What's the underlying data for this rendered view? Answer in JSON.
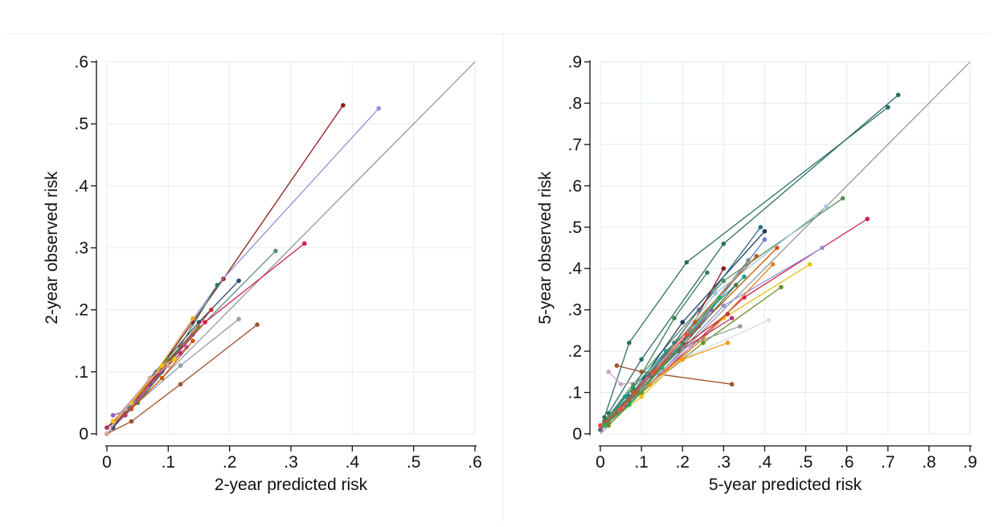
{
  "chart_data": [
    {
      "type": "line",
      "xlabel": "2-year predicted risk",
      "ylabel": "2-year observed risk",
      "xlim": [
        0,
        0.6
      ],
      "ylim": [
        0,
        0.6
      ],
      "xticks": [
        "0",
        ".1",
        ".2",
        ".3",
        ".4",
        ".5",
        ".6"
      ],
      "yticks": [
        "0",
        ".1",
        ".2",
        ".3",
        ".4",
        ".5",
        ".6"
      ],
      "grid": true,
      "reference_line": [
        [
          0,
          0
        ],
        [
          0.6,
          0.6
        ]
      ],
      "series": [
        {
          "color": "#8b1a1a",
          "points": [
            [
              0.01,
              0.01
            ],
            [
              0.06,
              0.07
            ],
            [
              0.14,
              0.18
            ],
            [
              0.19,
              0.25
            ],
            [
              0.385,
              0.53
            ]
          ]
        },
        {
          "color": "#8f8fd9",
          "points": [
            [
              0.01,
              0.02
            ],
            [
              0.08,
              0.1
            ],
            [
              0.18,
              0.24
            ],
            [
              0.443,
              0.525
            ]
          ]
        },
        {
          "color": "#5b8c8c",
          "points": [
            [
              0.0,
              0.0
            ],
            [
              0.06,
              0.07
            ],
            [
              0.14,
              0.16
            ],
            [
              0.275,
              0.295
            ]
          ]
        },
        {
          "color": "#d0204c",
          "points": [
            [
              0.0,
              0.01
            ],
            [
              0.07,
              0.08
            ],
            [
              0.16,
              0.18
            ],
            [
              0.322,
              0.307
            ]
          ]
        },
        {
          "color": "#2c4a6e",
          "points": [
            [
              0.01,
              0.01
            ],
            [
              0.07,
              0.09
            ],
            [
              0.15,
              0.18
            ],
            [
              0.215,
              0.247
            ]
          ]
        },
        {
          "color": "#6b8e23",
          "points": [
            [
              0.01,
              0.02
            ],
            [
              0.05,
              0.06
            ],
            [
              0.1,
              0.12
            ],
            [
              0.15,
              0.172
            ]
          ]
        },
        {
          "color": "#8fa0a0",
          "points": [
            [
              0.0,
              0.01
            ],
            [
              0.05,
              0.05
            ],
            [
              0.12,
              0.11
            ],
            [
              0.215,
              0.185
            ]
          ]
        },
        {
          "color": "#a0522d",
          "points": [
            [
              0.0,
              0.0
            ],
            [
              0.04,
              0.02
            ],
            [
              0.12,
              0.08
            ],
            [
              0.245,
              0.176
            ]
          ]
        },
        {
          "color": "#e8a33d",
          "points": [
            [
              0.01,
              0.02
            ],
            [
              0.06,
              0.07
            ],
            [
              0.14,
              0.186
            ]
          ]
        },
        {
          "color": "#9b59b6",
          "points": [
            [
              0.01,
              0.03
            ],
            [
              0.04,
              0.04
            ],
            [
              0.09,
              0.1
            ],
            [
              0.13,
              0.14
            ]
          ]
        },
        {
          "color": "#c0392b",
          "points": [
            [
              0.0,
              0.01
            ],
            [
              0.05,
              0.06
            ],
            [
              0.12,
              0.14
            ],
            [
              0.17,
              0.2
            ]
          ]
        },
        {
          "color": "#3a7d5d",
          "points": [
            [
              0.0,
              0.01
            ],
            [
              0.05,
              0.05
            ],
            [
              0.1,
              0.11
            ],
            [
              0.18,
              0.24
            ]
          ]
        },
        {
          "color": "#d35400",
          "points": [
            [
              0.01,
              0.02
            ],
            [
              0.04,
              0.04
            ],
            [
              0.09,
              0.09
            ],
            [
              0.14,
              0.15
            ]
          ]
        },
        {
          "color": "#b03a6f",
          "points": [
            [
              0.0,
              0.01
            ],
            [
              0.03,
              0.03
            ],
            [
              0.07,
              0.08
            ],
            [
              0.12,
              0.13
            ]
          ]
        },
        {
          "color": "#f1c40f",
          "points": [
            [
              0.01,
              0.02
            ],
            [
              0.04,
              0.05
            ],
            [
              0.09,
              0.11
            ],
            [
              0.11,
              0.12
            ]
          ]
        },
        {
          "color": "#d9a6a6",
          "points": [
            [
              0.0,
              0.0
            ],
            [
              0.03,
              0.04
            ],
            [
              0.07,
              0.09
            ],
            [
              0.1,
              0.11
            ]
          ]
        }
      ]
    },
    {
      "type": "line",
      "xlabel": "5-year predicted risk",
      "ylabel": "5-year observed risk",
      "xlim": [
        0,
        0.9
      ],
      "ylim": [
        0,
        0.9
      ],
      "xticks": [
        "0",
        ".1",
        ".2",
        ".3",
        ".4",
        ".5",
        ".6",
        ".7",
        ".8",
        ".9"
      ],
      "yticks": [
        "0",
        ".1",
        ".2",
        ".3",
        ".4",
        ".5",
        ".6",
        ".7",
        ".8",
        ".9"
      ],
      "grid": true,
      "reference_line": [
        [
          0,
          0
        ],
        [
          0.9,
          0.9
        ]
      ],
      "series": [
        {
          "color": "#2a6e64",
          "points": [
            [
              0.01,
              0.04
            ],
            [
              0.07,
              0.22
            ],
            [
              0.21,
              0.415
            ],
            [
              0.7,
              0.79
            ]
          ]
        },
        {
          "color": "#2a6e64",
          "points": [
            [
              0.02,
              0.05
            ],
            [
              0.1,
              0.18
            ],
            [
              0.3,
              0.46
            ],
            [
              0.725,
              0.82
            ]
          ]
        },
        {
          "color": "#5b8c5b",
          "points": [
            [
              0.01,
              0.03
            ],
            [
              0.08,
              0.12
            ],
            [
              0.3,
              0.37
            ],
            [
              0.59,
              0.57
            ]
          ]
        },
        {
          "color": "#d0204c",
          "points": [
            [
              0.0,
              0.01
            ],
            [
              0.1,
              0.1
            ],
            [
              0.35,
              0.33
            ],
            [
              0.65,
              0.52
            ]
          ]
        },
        {
          "color": "#e8c21a",
          "points": [
            [
              0.01,
              0.02
            ],
            [
              0.1,
              0.09
            ],
            [
              0.3,
              0.28
            ],
            [
              0.51,
              0.41
            ]
          ]
        },
        {
          "color": "#8f8fd9",
          "points": [
            [
              0.0,
              0.01
            ],
            [
              0.12,
              0.12
            ],
            [
              0.3,
              0.31
            ],
            [
              0.54,
              0.45
            ]
          ]
        },
        {
          "color": "#1f3a5f",
          "points": [
            [
              0.01,
              0.02
            ],
            [
              0.08,
              0.1
            ],
            [
              0.2,
              0.27
            ],
            [
              0.4,
              0.49
            ]
          ]
        },
        {
          "color": "#2c6e8f",
          "points": [
            [
              0.0,
              0.02
            ],
            [
              0.07,
              0.09
            ],
            [
              0.18,
              0.22
            ],
            [
              0.39,
              0.5
            ]
          ]
        },
        {
          "color": "#6b8e23",
          "points": [
            [
              0.02,
              0.02
            ],
            [
              0.1,
              0.1
            ],
            [
              0.25,
              0.22
            ],
            [
              0.44,
              0.355
            ]
          ]
        },
        {
          "color": "#a0522d",
          "points": [
            [
              0.04,
              0.165
            ],
            [
              0.1,
              0.15
            ],
            [
              0.32,
              0.12
            ]
          ]
        },
        {
          "color": "#d9d9e8",
          "points": [
            [
              0.01,
              0.03
            ],
            [
              0.08,
              0.09
            ],
            [
              0.22,
              0.19
            ],
            [
              0.41,
              0.275
            ]
          ]
        },
        {
          "color": "#e67e22",
          "points": [
            [
              0.01,
              0.03
            ],
            [
              0.12,
              0.12
            ],
            [
              0.25,
              0.23
            ],
            [
              0.42,
              0.41
            ]
          ]
        },
        {
          "color": "#8b1a1a",
          "points": [
            [
              0.01,
              0.02
            ],
            [
              0.08,
              0.09
            ],
            [
              0.2,
              0.22
            ],
            [
              0.3,
              0.4
            ]
          ]
        },
        {
          "color": "#3a7d5d",
          "points": [
            [
              0.02,
              0.04
            ],
            [
              0.08,
              0.11
            ],
            [
              0.18,
              0.28
            ],
            [
              0.26,
              0.39
            ]
          ]
        },
        {
          "color": "#b03a6f",
          "points": [
            [
              0.01,
              0.02
            ],
            [
              0.06,
              0.07
            ],
            [
              0.16,
              0.18
            ],
            [
              0.32,
              0.28
            ]
          ]
        },
        {
          "color": "#f39c12",
          "points": [
            [
              0.02,
              0.04
            ],
            [
              0.09,
              0.1
            ],
            [
              0.2,
              0.18
            ],
            [
              0.31,
              0.22
            ]
          ]
        },
        {
          "color": "#8fa0a0",
          "points": [
            [
              0.01,
              0.02
            ],
            [
              0.07,
              0.08
            ],
            [
              0.2,
              0.21
            ],
            [
              0.34,
              0.26
            ]
          ]
        },
        {
          "color": "#c0392b",
          "points": [
            [
              0.0,
              0.01
            ],
            [
              0.06,
              0.07
            ],
            [
              0.17,
              0.19
            ],
            [
              0.31,
              0.29
            ]
          ]
        },
        {
          "color": "#6c7ec9",
          "points": [
            [
              0.02,
              0.03
            ],
            [
              0.1,
              0.12
            ],
            [
              0.24,
              0.26
            ],
            [
              0.4,
              0.47
            ]
          ]
        },
        {
          "color": "#d35400",
          "points": [
            [
              0.01,
              0.02
            ],
            [
              0.09,
              0.1
            ],
            [
              0.22,
              0.24
            ],
            [
              0.43,
              0.45
            ]
          ]
        },
        {
          "color": "#9b59b6",
          "points": [
            [
              0.0,
              0.02
            ],
            [
              0.05,
              0.06
            ],
            [
              0.15,
              0.16
            ],
            [
              0.27,
              0.3
            ]
          ]
        },
        {
          "color": "#16a085",
          "points": [
            [
              0.01,
              0.03
            ],
            [
              0.06,
              0.09
            ],
            [
              0.16,
              0.2
            ],
            [
              0.35,
              0.38
            ]
          ]
        },
        {
          "color": "#7f8c8d",
          "points": [
            [
              0.01,
              0.02
            ],
            [
              0.08,
              0.09
            ],
            [
              0.22,
              0.25
            ],
            [
              0.36,
              0.42
            ]
          ]
        },
        {
          "color": "#c8a2c8",
          "points": [
            [
              0.02,
              0.15
            ],
            [
              0.05,
              0.12
            ],
            [
              0.12,
              0.13
            ],
            [
              0.22,
              0.21
            ]
          ]
        },
        {
          "color": "#a3c4dc",
          "points": [
            [
              0.01,
              0.02
            ],
            [
              0.1,
              0.11
            ],
            [
              0.28,
              0.34
            ],
            [
              0.55,
              0.55
            ]
          ]
        },
        {
          "color": "#4a7a4a",
          "points": [
            [
              0.01,
              0.03
            ],
            [
              0.07,
              0.08
            ],
            [
              0.19,
              0.2
            ],
            [
              0.33,
              0.36
            ]
          ]
        },
        {
          "color": "#b5651d",
          "points": [
            [
              0.02,
              0.03
            ],
            [
              0.08,
              0.1
            ],
            [
              0.23,
              0.27
            ],
            [
              0.38,
              0.43
            ]
          ]
        },
        {
          "color": "#5d6d7e",
          "points": [
            [
              0.0,
              0.01
            ],
            [
              0.04,
              0.05
            ],
            [
              0.12,
              0.14
            ],
            [
              0.24,
              0.3
            ]
          ]
        },
        {
          "color": "#27ae60",
          "points": [
            [
              0.01,
              0.02
            ],
            [
              0.07,
              0.07
            ],
            [
              0.15,
              0.16
            ],
            [
              0.29,
              0.33
            ]
          ]
        },
        {
          "color": "#e74c3c",
          "points": [
            [
              0.0,
              0.02
            ],
            [
              0.05,
              0.06
            ],
            [
              0.13,
              0.15
            ],
            [
              0.21,
              0.24
            ]
          ]
        }
      ]
    }
  ]
}
